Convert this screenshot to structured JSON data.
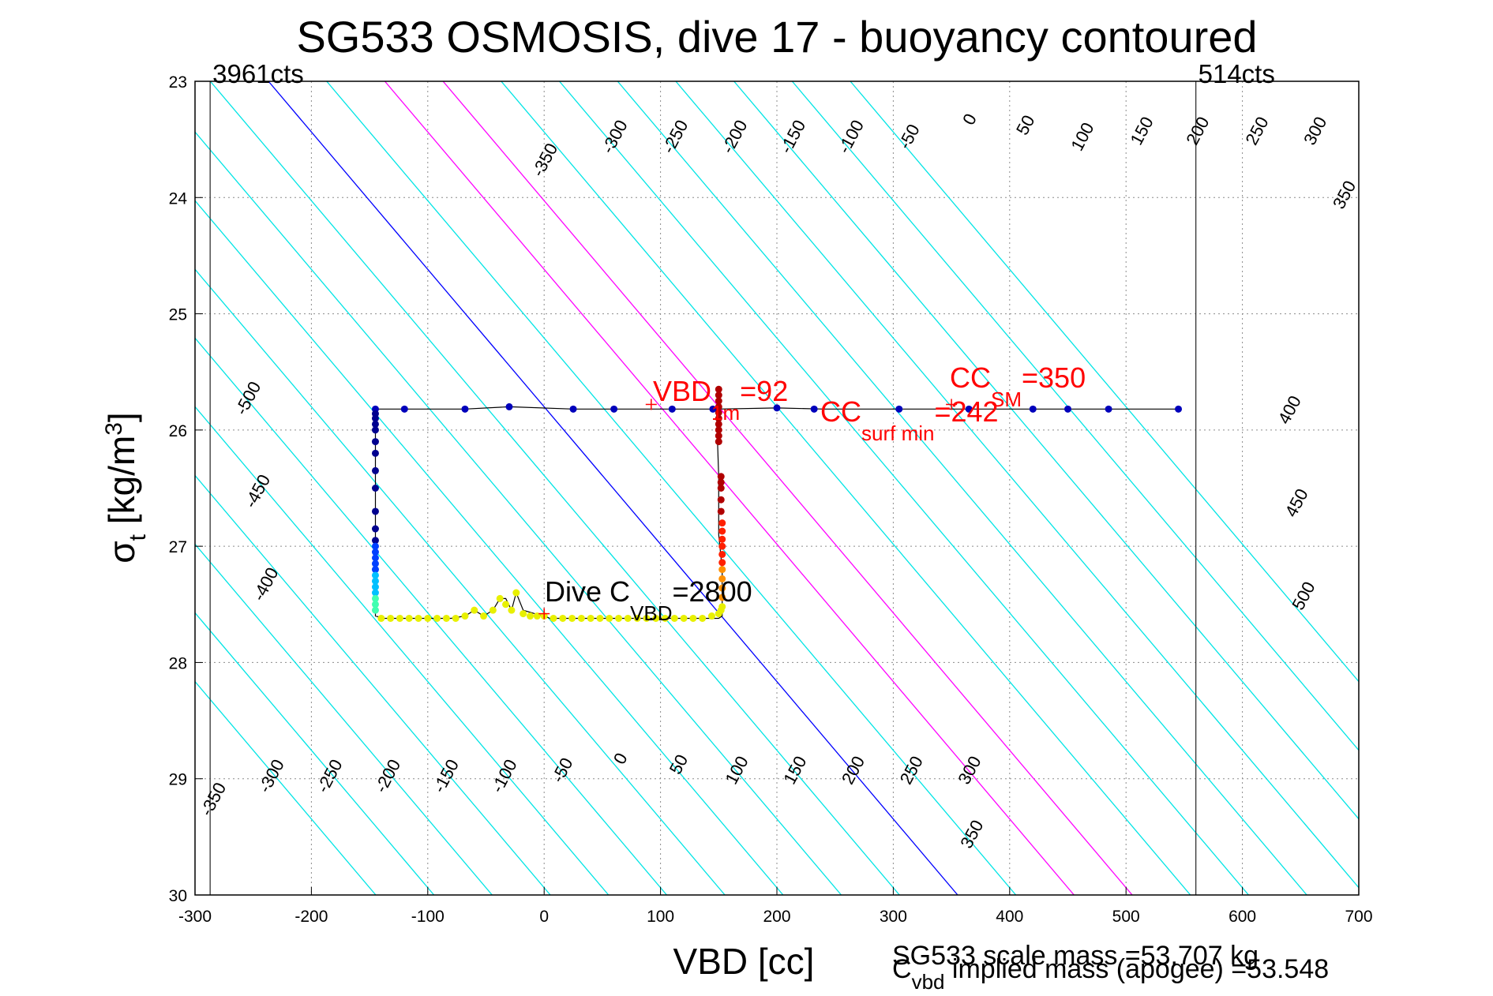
{
  "chart_data": {
    "type": "scatter",
    "title": "SG533 OSMOSIS, dive 17 - buoyancy contoured",
    "xlabel": "VBD [cc]",
    "ylabel": {
      "sym": "σ",
      "sub": "t",
      "rest": " [kg/m",
      "sup": "3",
      "close": "]"
    },
    "xlim": [
      -300,
      700
    ],
    "ylim": [
      23,
      30
    ],
    "y_reversed": true,
    "grid": true,
    "x_ticks": [
      -300,
      -200,
      -100,
      0,
      100,
      200,
      300,
      400,
      500,
      600,
      700
    ],
    "y_ticks": [
      23,
      24,
      25,
      26,
      27,
      28,
      29,
      30
    ],
    "x_tick_labels": [
      "-300",
      "-200",
      "-100",
      "0",
      "100",
      "200",
      "300",
      "400",
      "500",
      "600",
      "700"
    ],
    "y_tick_labels": [
      "23",
      "24",
      "25",
      "26",
      "27",
      "28",
      "29",
      "30"
    ],
    "contour_slope": 84.6,
    "contour_colors": {
      "default": "#00e5e5",
      "zero": "#0000ff",
      "band": "#ff00ff"
    },
    "contours": [
      {
        "level": -500
      },
      {
        "level": -450
      },
      {
        "level": -400
      },
      {
        "level": -350
      },
      {
        "level": -300
      },
      {
        "level": -250
      },
      {
        "level": -200
      },
      {
        "level": -150
      },
      {
        "level": -100
      },
      {
        "level": -50
      },
      {
        "level": 0
      },
      {
        "level": 50
      },
      {
        "level": 100
      },
      {
        "level": 150
      },
      {
        "level": 200
      },
      {
        "level": 250
      },
      {
        "level": 300
      },
      {
        "level": 350
      },
      {
        "level": 400
      },
      {
        "level": 450
      },
      {
        "level": 500
      }
    ],
    "contour_labels": [
      {
        "text": "-350",
        "x": 5,
        "y": 23.7
      },
      {
        "text": "-300",
        "x": 65,
        "y": 23.5
      },
      {
        "text": "-250",
        "x": 117,
        "y": 23.5
      },
      {
        "text": "-200",
        "x": 168,
        "y": 23.5
      },
      {
        "text": "-150",
        "x": 218,
        "y": 23.5
      },
      {
        "text": "-100",
        "x": 268,
        "y": 23.5
      },
      {
        "text": "-50",
        "x": 318,
        "y": 23.5
      },
      {
        "text": "0",
        "x": 370,
        "y": 23.35
      },
      {
        "text": "50",
        "x": 418,
        "y": 23.4
      },
      {
        "text": "100",
        "x": 467,
        "y": 23.5
      },
      {
        "text": "150",
        "x": 518,
        "y": 23.45
      },
      {
        "text": "200",
        "x": 566,
        "y": 23.45
      },
      {
        "text": "250",
        "x": 617,
        "y": 23.45
      },
      {
        "text": "300",
        "x": 667,
        "y": 23.45
      },
      {
        "text": "350",
        "x": 692,
        "y": 24.0
      },
      {
        "text": "-500",
        "x": -250,
        "y": 25.75
      },
      {
        "text": "-450",
        "x": -242,
        "y": 26.55
      },
      {
        "text": "-400",
        "x": -235,
        "y": 27.35
      },
      {
        "text": "400",
        "x": 645,
        "y": 25.85
      },
      {
        "text": "450",
        "x": 651,
        "y": 26.65
      },
      {
        "text": "500",
        "x": 657,
        "y": 27.45
      },
      {
        "text": "-350",
        "x": -280,
        "y": 29.2
      },
      {
        "text": "-300",
        "x": -230,
        "y": 29.0
      },
      {
        "text": "-250",
        "x": -180,
        "y": 29.0
      },
      {
        "text": "-200",
        "x": -130,
        "y": 29.0
      },
      {
        "text": "-150",
        "x": -80,
        "y": 29.0
      },
      {
        "text": "-100",
        "x": -30,
        "y": 29.0
      },
      {
        "text": "-50",
        "x": 20,
        "y": 28.95
      },
      {
        "text": "0",
        "x": 70,
        "y": 28.85
      },
      {
        "text": "50",
        "x": 120,
        "y": 28.9
      },
      {
        "text": "100",
        "x": 170,
        "y": 28.95
      },
      {
        "text": "150",
        "x": 220,
        "y": 28.95
      },
      {
        "text": "200",
        "x": 270,
        "y": 28.95
      },
      {
        "text": "250",
        "x": 320,
        "y": 28.95
      },
      {
        "text": "300",
        "x": 370,
        "y": 28.95
      },
      {
        "text": "350",
        "x": 372,
        "y": 29.5
      }
    ],
    "vertical_lines": [
      {
        "x": -287,
        "label": "3961cts"
      },
      {
        "x": 560,
        "label": "514cts"
      }
    ],
    "series": [
      {
        "style": "line",
        "color": "#000000",
        "x": [
          -145,
          -120,
          -68,
          -30,
          25,
          60,
          110,
          148,
          150,
          150,
          153,
          153,
          150,
          148,
          140,
          120,
          100,
          80,
          60,
          40,
          20,
          5,
          0,
          -8,
          -18,
          -24,
          -28,
          -33,
          -38,
          -44,
          -52,
          -60,
          -68,
          -80,
          -100,
          -120,
          -138,
          -145,
          -145,
          -145,
          -145,
          -145,
          -145,
          -145,
          -145,
          -145
        ],
        "y": [
          25.82,
          25.82,
          25.82,
          25.8,
          25.82,
          25.82,
          25.82,
          25.82,
          26.4,
          26.9,
          27.2,
          27.6,
          27.62,
          27.62,
          27.62,
          27.62,
          27.62,
          27.62,
          27.62,
          27.62,
          27.62,
          27.62,
          27.6,
          27.58,
          27.55,
          27.4,
          27.55,
          27.45,
          27.45,
          27.55,
          27.6,
          27.55,
          27.6,
          27.62,
          27.62,
          27.62,
          27.62,
          27.6,
          27.4,
          27.1,
          26.9,
          26.6,
          26.4,
          26.2,
          26.0,
          25.82
        ]
      },
      {
        "style": "line",
        "color": "#000000",
        "x": [
          150,
          200,
          240,
          300,
          360,
          420,
          450,
          485,
          545
        ],
        "y": [
          25.82,
          25.81,
          25.82,
          25.82,
          25.82,
          25.82,
          25.82,
          25.82,
          25.82
        ]
      },
      {
        "style": "markers",
        "color": "#0000bb",
        "x": [
          -145,
          -120,
          -68,
          -30,
          25,
          60,
          110,
          145,
          200,
          232,
          305,
          365,
          420,
          450,
          485,
          545
        ],
        "y": [
          25.82,
          25.82,
          25.82,
          25.8,
          25.82,
          25.82,
          25.82,
          25.82,
          25.81,
          25.82,
          25.82,
          25.82,
          25.82,
          25.82,
          25.82,
          25.82
        ]
      },
      {
        "style": "markers",
        "color": "#00008f",
        "x": [
          -145,
          -145,
          -145,
          -145,
          -145,
          -145,
          -145,
          -145,
          -145,
          -145,
          -145
        ],
        "y": [
          25.86,
          25.9,
          25.95,
          26.0,
          26.1,
          26.2,
          26.35,
          26.5,
          26.7,
          26.85,
          26.95
        ]
      },
      {
        "style": "markers",
        "color": "#0040ff",
        "x": [
          -145,
          -145,
          -145,
          -145,
          -145
        ],
        "y": [
          27.0,
          27.05,
          27.1,
          27.15,
          27.2
        ]
      },
      {
        "style": "markers",
        "color": "#00c0ff",
        "x": [
          -145,
          -145,
          -145,
          -145
        ],
        "y": [
          27.25,
          27.3,
          27.35,
          27.4
        ]
      },
      {
        "style": "markers",
        "color": "#40ffb0",
        "x": [
          -145,
          -145,
          -145
        ],
        "y": [
          27.45,
          27.5,
          27.55
        ]
      },
      {
        "style": "markers",
        "color": "#e8f000",
        "x": [
          -140,
          -132,
          -124,
          -116,
          -108,
          -100,
          -92,
          -84,
          -76,
          -68,
          -60,
          -52,
          -44,
          -38,
          -33,
          -28,
          -24,
          -18,
          -12,
          -6,
          0,
          8,
          16,
          24,
          32,
          40,
          48,
          56,
          64,
          72,
          80,
          88,
          96,
          104,
          112,
          120,
          128,
          136,
          144,
          150,
          152,
          153
        ],
        "y": [
          27.62,
          27.62,
          27.62,
          27.62,
          27.62,
          27.62,
          27.62,
          27.62,
          27.62,
          27.6,
          27.55,
          27.6,
          27.55,
          27.45,
          27.5,
          27.55,
          27.4,
          27.58,
          27.6,
          27.6,
          27.6,
          27.62,
          27.62,
          27.62,
          27.62,
          27.62,
          27.62,
          27.62,
          27.62,
          27.62,
          27.62,
          27.62,
          27.62,
          27.62,
          27.62,
          27.62,
          27.62,
          27.62,
          27.6,
          27.58,
          27.55,
          27.52
        ]
      },
      {
        "style": "markers",
        "color": "#ff9000",
        "x": [
          153,
          153,
          153,
          153
        ],
        "y": [
          27.2,
          27.28,
          27.36,
          27.44
        ]
      },
      {
        "style": "markers",
        "color": "#ff2000",
        "x": [
          153,
          153,
          153,
          153,
          153,
          153
        ],
        "y": [
          26.8,
          26.87,
          26.94,
          27.0,
          27.07,
          27.14
        ]
      },
      {
        "style": "markers",
        "color": "#b00000",
        "x": [
          150,
          150,
          150,
          150,
          150,
          150,
          150,
          150,
          150,
          150,
          152,
          152,
          152,
          152,
          152
        ],
        "y": [
          25.65,
          25.7,
          25.75,
          25.8,
          25.85,
          25.9,
          25.95,
          26.0,
          26.05,
          26.1,
          26.4,
          26.45,
          26.5,
          26.6,
          26.7
        ]
      }
    ],
    "crosshairs": [
      {
        "x": 92,
        "y": 25.78
      },
      {
        "x": 350,
        "y": 25.78
      },
      {
        "x": 0,
        "y": 27.58
      }
    ],
    "annotations": {
      "vbd1m": {
        "main": "VBD",
        "sub": "1m",
        "tail": "=92"
      },
      "ccsm": {
        "main": "CC",
        "sub": "SM",
        "tail": "=350"
      },
      "ccsurf": {
        "main": "CC",
        "sub": "surf min",
        "tail": "=242"
      },
      "dive": {
        "main": "Dive C",
        "sub": "VBD",
        "tail": "=2800"
      }
    }
  },
  "footer": {
    "scale_mass": "SG533 scale mass =53.707 kg",
    "implied_main": "C",
    "implied_sub": "vbd",
    "implied_tail": " implied mass (apogee) =53.548"
  }
}
